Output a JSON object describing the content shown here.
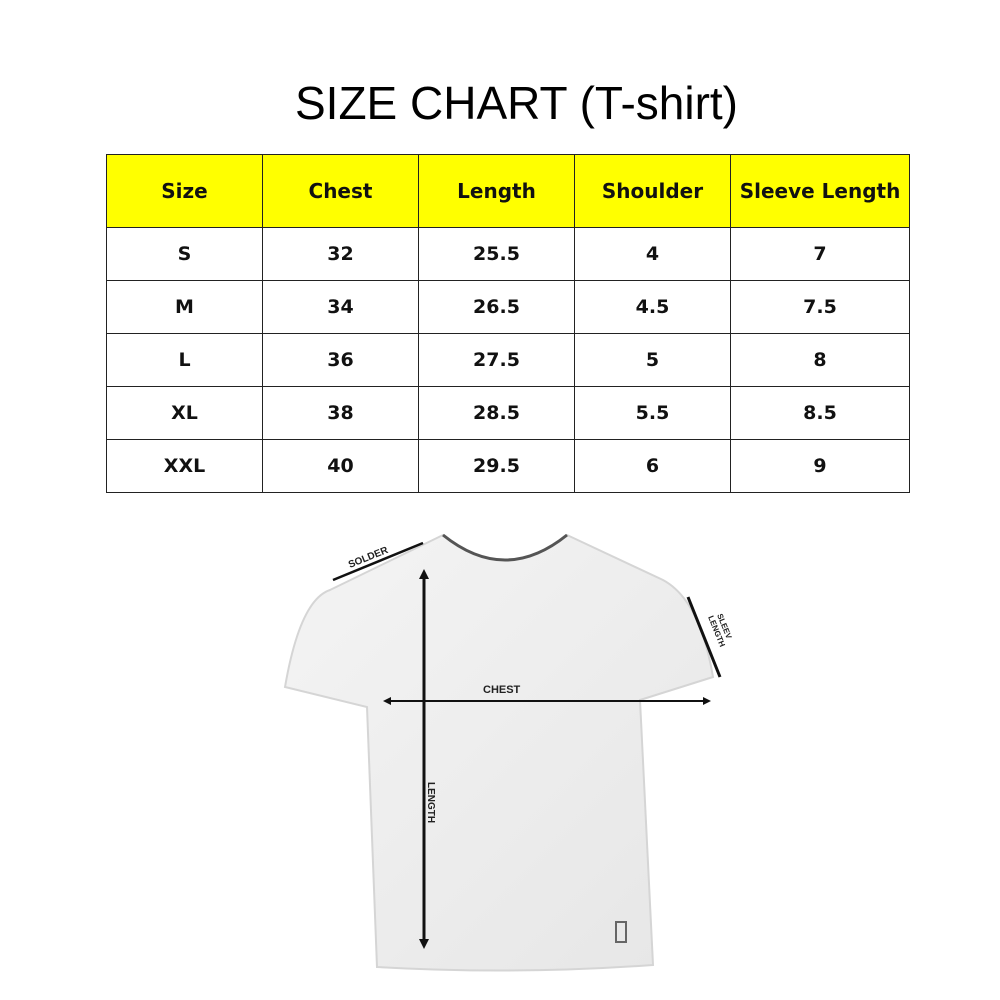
{
  "title": "SIZE CHART (T-shirt)",
  "table": {
    "headers": [
      "Size",
      "Chest",
      "Length",
      "Shoulder",
      "Sleeve Length"
    ],
    "rows": [
      [
        "S",
        "32",
        "25.5",
        "4",
        "7"
      ],
      [
        "M",
        "34",
        "26.5",
        "4.5",
        "7.5"
      ],
      [
        "L",
        "36",
        "27.5",
        "5",
        "8"
      ],
      [
        "XL",
        "38",
        "28.5",
        "5.5",
        "8.5"
      ],
      [
        "XXL",
        "40",
        "29.5",
        "6",
        "9"
      ]
    ],
    "header_color": "#ffff00"
  },
  "diagram": {
    "labels": {
      "shoulder": "SOLDER",
      "sleeve_1": "SLEEV",
      "sleeve_2": "LENGTH",
      "chest": "CHEST",
      "length": "LENGTH"
    }
  }
}
